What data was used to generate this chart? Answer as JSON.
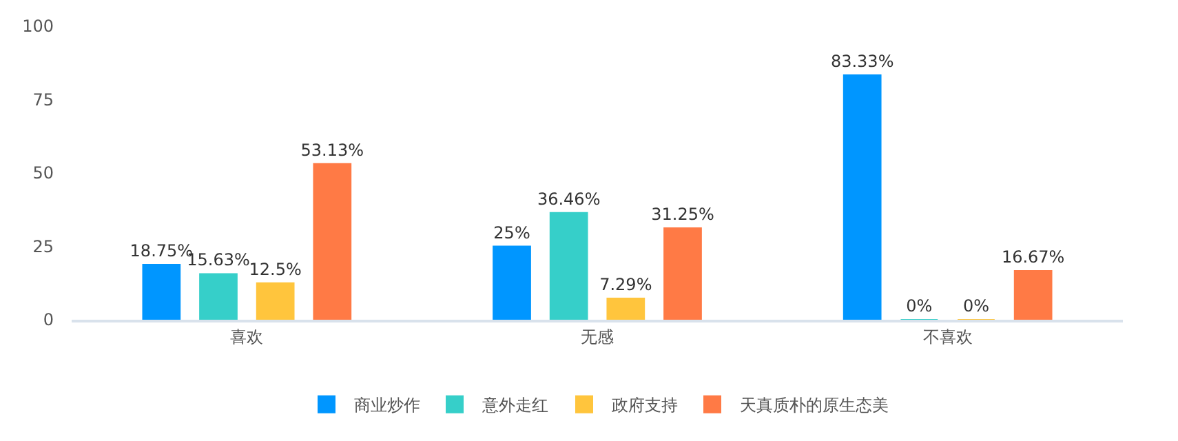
{
  "chart_data": {
    "type": "bar",
    "categories": [
      "喜欢",
      "无感",
      "不喜欢"
    ],
    "series": [
      {
        "name": "商业炒作",
        "color": "#0096ff",
        "values": [
          18.75,
          25,
          83.33
        ],
        "value_labels": [
          "18.75%",
          "25%",
          "83.33%"
        ]
      },
      {
        "name": "意外走红",
        "color": "#36cfc9",
        "values": [
          15.63,
          36.46,
          0
        ],
        "value_labels": [
          "15.63%",
          "36.46%",
          "0%"
        ]
      },
      {
        "name": "政府支持",
        "color": "#ffc53d",
        "values": [
          12.5,
          7.29,
          0
        ],
        "value_labels": [
          "12.5%",
          "7.29%",
          "0%"
        ]
      },
      {
        "name": "天真质朴的原生态美",
        "color": "#ff7a45",
        "values": [
          53.13,
          31.25,
          16.67
        ],
        "value_labels": [
          "53.13%",
          "31.25%",
          "16.67%"
        ]
      }
    ],
    "ylim": [
      0,
      100
    ],
    "yticks": [
      0,
      25,
      50,
      75,
      100
    ],
    "grid": false,
    "legend": "bottom"
  }
}
